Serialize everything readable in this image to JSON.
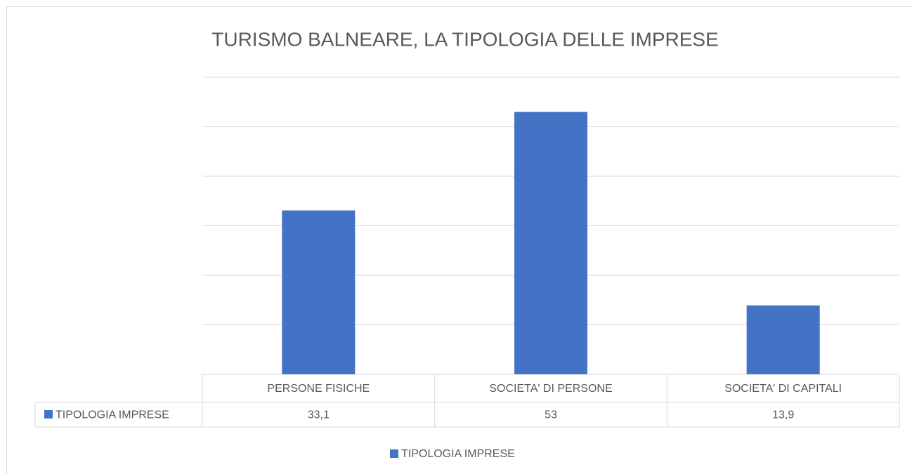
{
  "chart_data": {
    "type": "bar",
    "title": "TURISMO BALNEARE, LA TIPOLOGIA DELLE  IMPRESE",
    "categories": [
      "PERSONE FISICHE",
      "SOCIETA' DI PERSONE",
      "SOCIETA' DI CAPITALI"
    ],
    "series": [
      {
        "name": "TIPOLOGIA IMPRESE",
        "color": "#4472c4",
        "values": [
          33.1,
          53,
          13.9
        ],
        "value_labels": [
          "33,1",
          "53",
          "13,9"
        ]
      }
    ],
    "ylim": [
      0,
      60
    ],
    "yticks": [
      0,
      10,
      20,
      30,
      40,
      50,
      60
    ],
    "grid": true,
    "legend": "bottom"
  }
}
